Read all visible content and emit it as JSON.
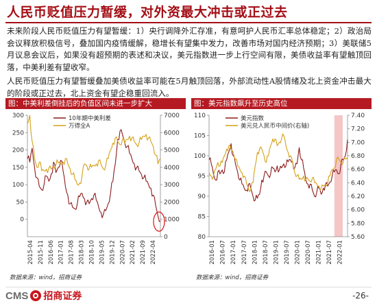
{
  "title": "人民币贬值压力暂缓，对外资最大冲击或正过去",
  "paragraphs": [
    "未来阶段人民币贬值压力有望暂缓：1）央行调降外汇存准，有意呵护人民币汇率总体稳定；2）政治局会议释放积极信号，叠加国内疫情缓解，稳增长有望集中发力，改善市场对国内经济预期；3）美联储5月议息会议后，如果没有超预期的表述和决议，美元指数进一步上行空间有限，美债收益率有望触顶回落，中美利差有望收窄。",
    "人民币贬值压力有望暂缓叠加美债收益率可能在5月触顶回落，外部流动性A股情绪及北上资金冲击最大的阶段或正过去，北上资金有望企稳重回流入。"
  ],
  "footer": {
    "logo_text": "CMS",
    "company": "招商证券",
    "page": "-26-"
  },
  "colors": {
    "accent": "#a40e15",
    "series1": "#8b1a1a",
    "series2": "#d4a017"
  },
  "charts": [
    {
      "caption": "图：中美利差倒挂后的负值区间未进一步扩大",
      "source": "数据来源：wind，招商证券",
      "chart_data": {
        "type": "line",
        "x_ticks": [
          "2015-04",
          "2015-11",
          "2016-06",
          "2017-01",
          "2017-08",
          "2018-03",
          "2018-10",
          "2019-05",
          "2019-12",
          "2020-07",
          "2021-02",
          "2021-09",
          "2022-04"
        ],
        "y_left": {
          "range": [
            -50,
            300
          ],
          "ticks": [
            "0",
            "50",
            "100",
            "150",
            "200",
            "250",
            "300"
          ]
        },
        "y_right": {
          "range": [
            0,
            7000
          ],
          "ticks": [
            "0",
            "1000",
            "2000",
            "3000",
            "4000",
            "5000",
            "6000",
            "7000"
          ]
        },
        "series": [
          {
            "name": "10年期中美利差",
            "axis": "left",
            "color": "#8b1a1a",
            "values": [
              175,
              165,
              205,
              150,
              120,
              95,
              85,
              100,
              125,
              110,
              130,
              165,
              135,
              150,
              170,
              140,
              95,
              70,
              45,
              35,
              30,
              45,
              65,
              75,
              60,
              50,
              45,
              60,
              70,
              55,
              35,
              20,
              15,
              25,
              45,
              75,
              110,
              160,
              230,
              255,
              245,
              220,
              210,
              190,
              175,
              160,
              150,
              140,
              130,
              120,
              110,
              100,
              90,
              70,
              40,
              10,
              -5
            ]
          },
          {
            "name": "万得全A",
            "axis": "right",
            "color": "#d4a017",
            "values": [
              6500,
              7000,
              5500,
              4500,
              4000,
              4300,
              3800,
              3800,
              3900,
              3950,
              3900,
              4050,
              4150,
              4250,
              4200,
              4300,
              4500,
              4200,
              3900,
              3600,
              3300,
              3000,
              3100,
              3500,
              4200,
              4100,
              3900,
              4000,
              4100,
              4200,
              4400,
              4150,
              3900,
              4100,
              4500,
              5000,
              5400,
              5700,
              5500,
              5300,
              5600,
              5400,
              5600,
              5800,
              5700,
              5500,
              5300,
              5400,
              5600,
              5800,
              5900,
              5700,
              5500,
              5200,
              4700,
              4200,
              4500
            ]
          }
        ]
      }
    },
    {
      "caption": "图：美元指数飙升至历史高位",
      "source": "数据来源：wind，招商证券",
      "chart_data": {
        "type": "line",
        "x_ticks": [
          "2016-01",
          "2016-07",
          "2017-01",
          "2017-07",
          "2018-01",
          "2018-07",
          "2019-01",
          "2019-07",
          "2020-01",
          "2020-07",
          "2021-01",
          "2021-07",
          "2022-01"
        ],
        "y_left": {
          "range": [
            80,
            110
          ],
          "ticks": [
            "80",
            "85",
            "90",
            "95",
            "100",
            "105",
            "110"
          ]
        },
        "y_right": {
          "range": [
            5.6,
            7.4
          ],
          "ticks": [
            "5.60",
            "5.80",
            "6.00",
            "6.20",
            "6.40",
            "6.60",
            "6.80",
            "7.00",
            "7.20",
            "7.40"
          ]
        },
        "series": [
          {
            "name": "美元指数",
            "axis": "left",
            "color": "#8b1a1a",
            "values": [
              99,
              98,
              95.5,
              94,
              96,
              95.5,
              96.5,
              96,
              99,
              101,
              103,
              100,
              98,
              96,
              94,
              93,
              92,
              91.5,
              93,
              92,
              90,
              89,
              89.5,
              90.5,
              94,
              95,
              96,
              95,
              95.5,
              97,
              96,
              97.5,
              96.5,
              97,
              98,
              97.5,
              98.5,
              99,
              98.5,
              97,
              98,
              102,
              99,
              97,
              94,
              93,
              93,
              91.5,
              90,
              91,
              92,
              90.5,
              92,
              93,
              92.5,
              93.5,
              95,
              96,
              96.5,
              95.5,
              98,
              99,
              100,
              104
            ]
          },
          {
            "name": "美元兑人民币中间价(右轴)",
            "axis": "right",
            "color": "#d4a017",
            "values": [
              6.55,
              6.5,
              6.5,
              6.6,
              6.7,
              6.65,
              6.7,
              6.8,
              6.9,
              6.95,
              6.9,
              6.85,
              6.75,
              6.65,
              6.6,
              6.55,
              6.5,
              6.4,
              6.3,
              6.3,
              6.4,
              6.65,
              6.85,
              6.9,
              6.9,
              6.8,
              6.7,
              6.8,
              6.95,
              7.05,
              7.05,
              6.95,
              7.0,
              7.05,
              7.1,
              6.95,
              6.85,
              6.8,
              6.7,
              6.55,
              6.5,
              6.45,
              6.45,
              6.5,
              6.45,
              6.45,
              6.42,
              6.47,
              6.4,
              6.38,
              6.35,
              6.32,
              6.35,
              6.37,
              6.4,
              6.5,
              6.6,
              6.62,
              6.75,
              6.75,
              6.7,
              6.7,
              6.75,
              6.75
            ]
          }
        ],
        "highlight": "2022-04 to 2022-05"
      }
    }
  ]
}
